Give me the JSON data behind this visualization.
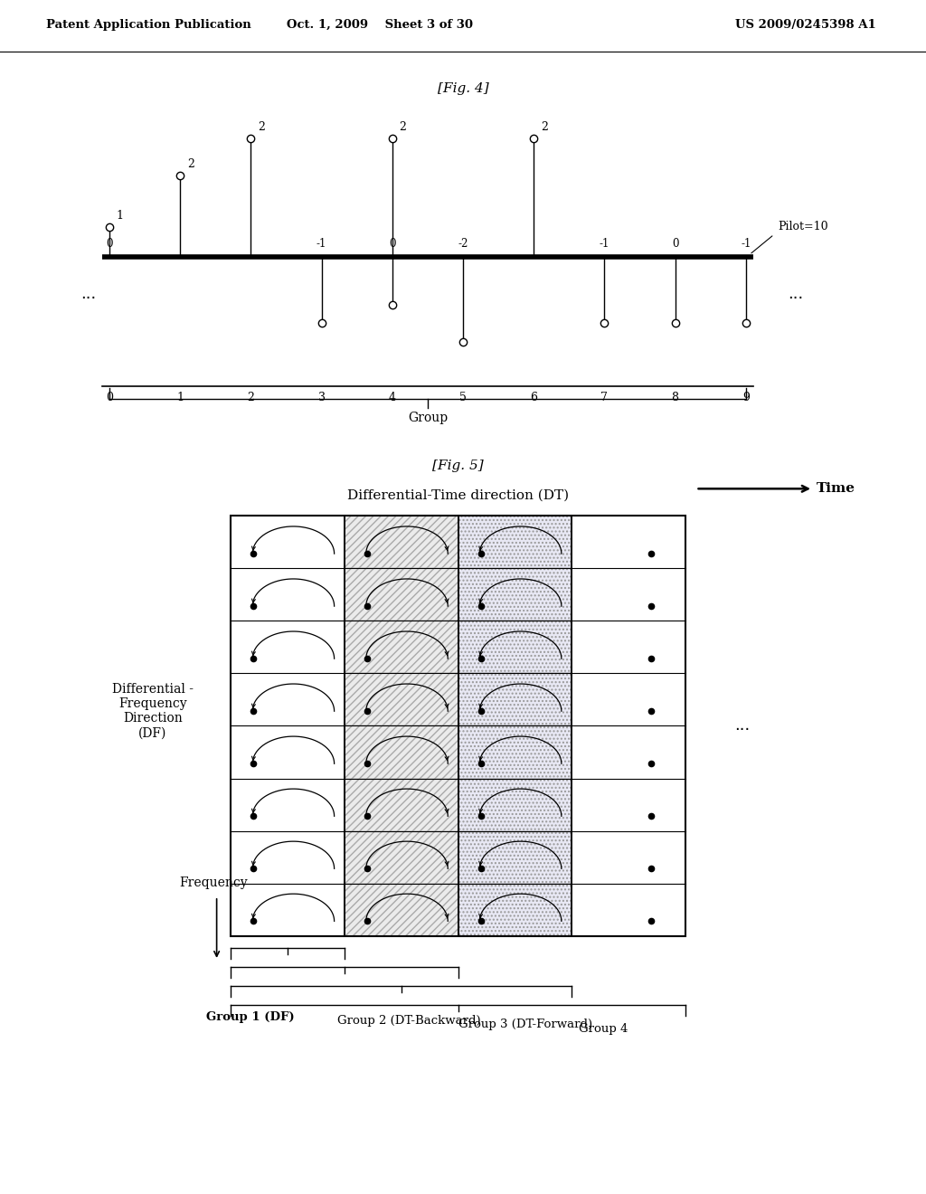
{
  "fig4_title": "[Fig. 4]",
  "fig5_title": "[Fig. 5]",
  "header_left": "Patent Application Publication",
  "header_mid": "Oct. 1, 2009    Sheet 3 of 30",
  "header_right": "US 2009/0245398 A1",
  "bg_color": "#ffffff",
  "fig4_pilot_label": "Pilot=10",
  "fig4_group_label": "Group",
  "fig5_dt_label": "Differential-Time direction (DT)",
  "fig5_time_label": "Time",
  "fig5_df_label": "Differential -\nFrequency\nDirection\n(DF)",
  "fig5_freq_label": "Frequency",
  "fig5_group1": "Group 1 (DF)",
  "fig5_group2": "Group 2 (DT-Backward)",
  "fig5_group3": "Group 3 (DT-Forward)",
  "fig5_group4": "Group 4",
  "fig5_dots": "...",
  "fig4_positions": [
    0,
    1,
    2,
    3,
    4,
    5,
    6,
    7,
    8,
    9
  ],
  "fig4_heights_above": [
    0.8,
    2.2,
    3.2,
    0,
    3.2,
    0,
    3.2,
    0,
    0,
    0
  ],
  "fig4_heights_below": [
    0,
    0,
    0,
    1.8,
    1.3,
    2.3,
    0,
    1.8,
    1.8,
    1.8
  ],
  "fig4_labels_above": [
    "1",
    "2",
    "2",
    "",
    "2",
    "",
    "2",
    "",
    "",
    ""
  ],
  "fig4_near_line_labels": [
    "0",
    "",
    "",
    "-1",
    "0",
    "-2",
    "",
    "-1",
    "0",
    "-1"
  ]
}
